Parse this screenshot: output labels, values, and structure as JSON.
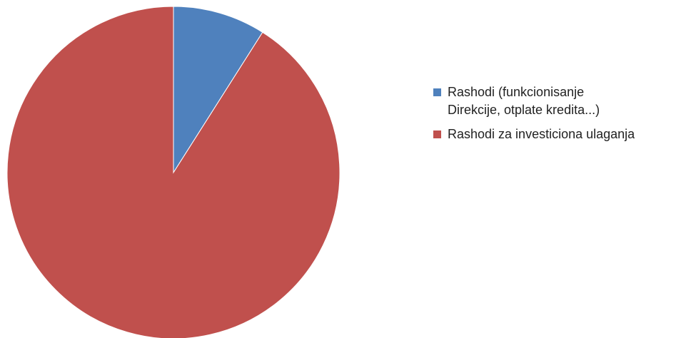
{
  "chart_data": {
    "type": "pie",
    "title": "",
    "legend_position": "right",
    "start_angle_deg": 0,
    "direction": "clockwise",
    "series": [
      {
        "labels": [
          "Rashodi (funkcionisanje\nDirekcije, otplate kredita...)",
          "Rashodi za investiciona ulaganja"
        ],
        "values": [
          9,
          91
        ],
        "colors": [
          "#4f81bd",
          "#c0504d"
        ]
      }
    ]
  },
  "legend": {
    "items": [
      {
        "label_line1": "Rashodi (funkcionisanje",
        "label_line2": "Direkcije, otplate kredita...)",
        "color": "#4f81bd"
      },
      {
        "label_line1": "Rashodi za investiciona ulaganja",
        "label_line2": "",
        "color": "#c0504d"
      }
    ]
  }
}
